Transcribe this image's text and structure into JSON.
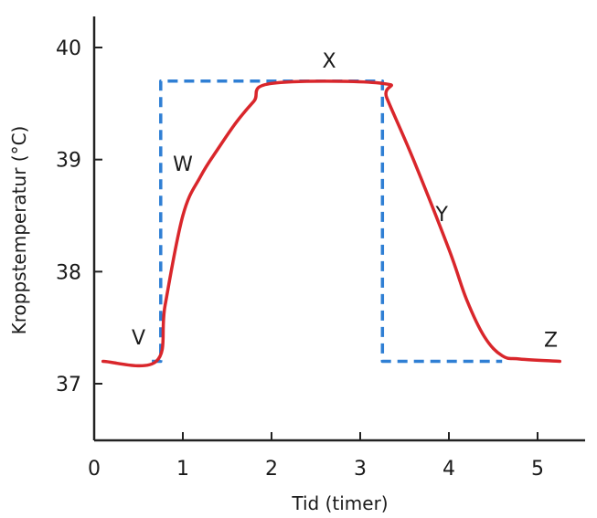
{
  "chart_data": {
    "type": "line",
    "xlabel": "Tid (timer)",
    "ylabel": "Kroppstemperatur (°C)",
    "xlim": [
      0,
      5.9
    ],
    "ylim": [
      36.5,
      40.35
    ],
    "x_ticks": [
      0,
      1,
      2,
      3,
      4,
      5
    ],
    "y_ticks": [
      37,
      38,
      39,
      40
    ],
    "grid": false,
    "series": [
      {
        "style": "solid",
        "color": "#d9262b",
        "points": [
          [
            0.1,
            37.2
          ],
          [
            0.7,
            37.2
          ],
          [
            0.8,
            37.7
          ],
          [
            1.0,
            38.5
          ],
          [
            1.2,
            38.85
          ],
          [
            1.4,
            39.1
          ],
          [
            1.6,
            39.33
          ],
          [
            1.8,
            39.52
          ],
          [
            2.0,
            39.68
          ],
          [
            3.25,
            39.68
          ],
          [
            3.3,
            39.55
          ],
          [
            3.6,
            39.0
          ],
          [
            4.0,
            38.2
          ],
          [
            4.2,
            37.75
          ],
          [
            4.4,
            37.42
          ],
          [
            4.6,
            37.25
          ],
          [
            4.8,
            37.22
          ],
          [
            5.25,
            37.2
          ]
        ]
      },
      {
        "style": "dashed",
        "color": "#2f7fd4",
        "points": [
          [
            0.65,
            37.2
          ],
          [
            0.75,
            37.2
          ],
          [
            0.75,
            39.7
          ],
          [
            2.0,
            39.7
          ],
          [
            3.25,
            39.7
          ],
          [
            3.25,
            37.2
          ],
          [
            4.6,
            37.2
          ]
        ]
      }
    ],
    "annotations": [
      {
        "label": "V",
        "x": 0.5,
        "y": 37.35
      },
      {
        "label": "W",
        "x": 1.0,
        "y": 38.9
      },
      {
        "label": "X",
        "x": 2.65,
        "y": 39.82
      },
      {
        "label": "Y",
        "x": 3.92,
        "y": 38.45
      },
      {
        "label": "Z",
        "x": 5.15,
        "y": 37.33
      }
    ]
  }
}
